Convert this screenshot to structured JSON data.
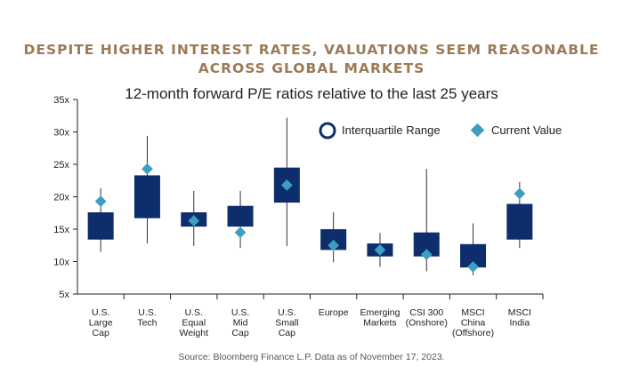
{
  "title_lines": [
    "DESPITE HIGHER INTEREST RATES, VALUATIONS SEEM REASONABLE",
    "ACROSS GLOBAL MARKETS"
  ],
  "subtitle": "12-month forward P/E ratios relative to the last 25 years",
  "source": "Source: Bloomberg Finance L.P. Data as of November 17, 2023.",
  "colors": {
    "title": "#9b7b57",
    "box": "#0d2d6c",
    "current": "#3a9fc0",
    "axis": "#222222"
  },
  "chart_data": {
    "type": "box",
    "y_tick_labels": [
      "5x",
      "10x",
      "15x",
      "20x",
      "25x",
      "30x",
      "35x"
    ],
    "ylim": [
      5,
      35
    ],
    "legend": {
      "iqr": "Interquartile Range",
      "current": "Current Value",
      "placement": "top-right"
    },
    "categories": [
      {
        "label": [
          "U.S.",
          "Large",
          "Cap"
        ],
        "min": 11.5,
        "q1": 13.4,
        "q3": 17.6,
        "max": 21.3,
        "current": 19.3
      },
      {
        "label": [
          "U.S.",
          "Tech"
        ],
        "min": 12.8,
        "q1": 16.7,
        "q3": 23.3,
        "max": 29.4,
        "current": 24.3
      },
      {
        "label": [
          "U.S.",
          "Equal",
          "Weight"
        ],
        "min": 12.4,
        "q1": 15.4,
        "q3": 17.6,
        "max": 20.9,
        "current": 16.3
      },
      {
        "label": [
          "U.S.",
          "Mid",
          "Cap"
        ],
        "min": 12.1,
        "q1": 15.4,
        "q3": 18.6,
        "max": 20.9,
        "current": 14.5
      },
      {
        "label": [
          "U.S.",
          "Small",
          "Cap"
        ],
        "min": 12.4,
        "q1": 19.1,
        "q3": 24.5,
        "max": 32.2,
        "current": 21.8
      },
      {
        "label": [
          "Europe"
        ],
        "min": 9.9,
        "q1": 11.8,
        "q3": 15.0,
        "max": 17.6,
        "current": 12.5
      },
      {
        "label": [
          "Emerging",
          "Markets"
        ],
        "min": 9.2,
        "q1": 10.8,
        "q3": 12.8,
        "max": 14.4,
        "current": 11.8
      },
      {
        "label": [
          "CSI 300",
          "(Onshore)"
        ],
        "min": 8.5,
        "q1": 10.8,
        "q3": 14.5,
        "max": 24.3,
        "current": 11.1
      },
      {
        "label": [
          "MSCI",
          "China",
          "(Offshore)"
        ],
        "min": 7.9,
        "q1": 9.1,
        "q3": 12.7,
        "max": 15.9,
        "current": 9.2
      },
      {
        "label": [
          "MSCI",
          "India"
        ],
        "min": 12.1,
        "q1": 13.4,
        "q3": 18.9,
        "max": 22.3,
        "current": 20.5
      }
    ]
  }
}
